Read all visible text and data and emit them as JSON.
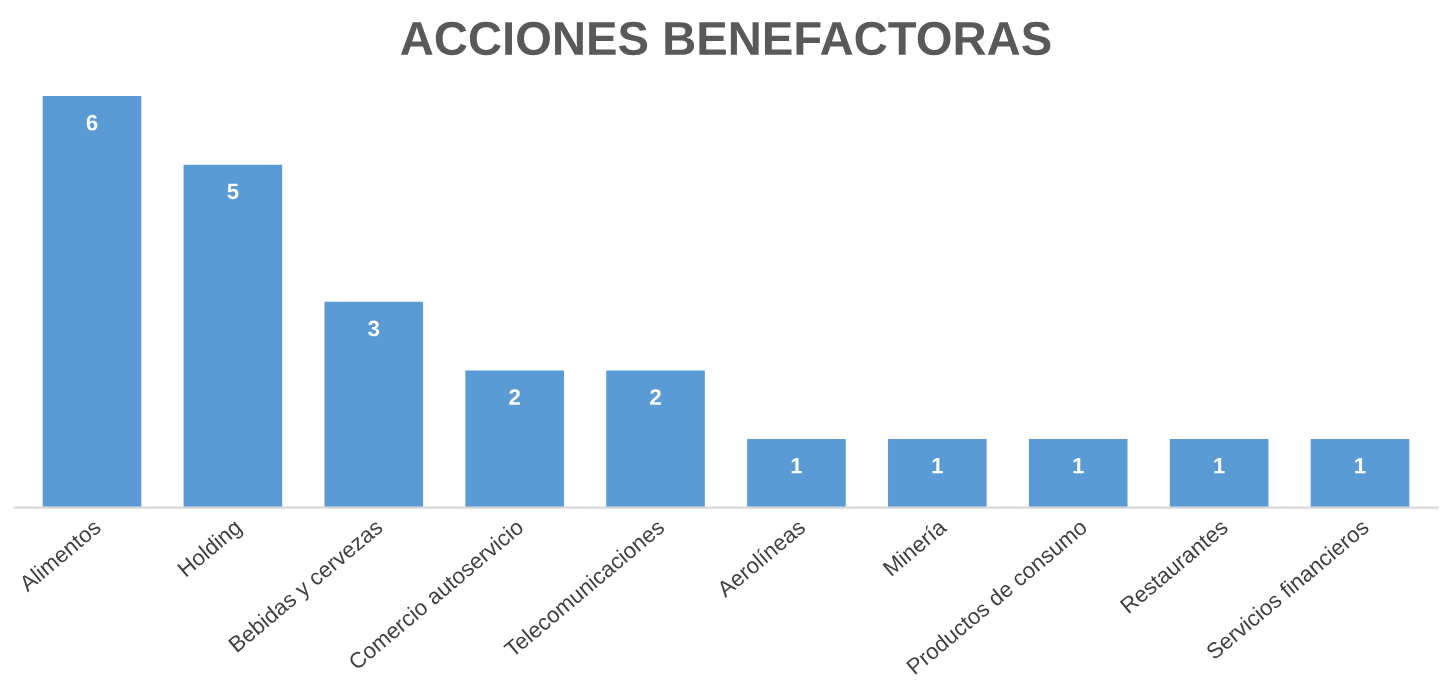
{
  "chart_data": {
    "type": "bar",
    "title": "ACCIONES BENEFACTORAS",
    "categories": [
      "Alimentos",
      "Holding",
      "Bebidas y cervezas",
      "Comercio autoservicio",
      "Telecomunicaciones",
      "Aerolíneas",
      "Minería",
      "Productos de consumo",
      "Restaurantes",
      "Servicios financieros"
    ],
    "values": [
      6,
      5,
      3,
      2,
      2,
      1,
      1,
      1,
      1,
      1
    ],
    "color": "#5b9bd5",
    "data_labels": true,
    "grid": false,
    "legend": false
  }
}
